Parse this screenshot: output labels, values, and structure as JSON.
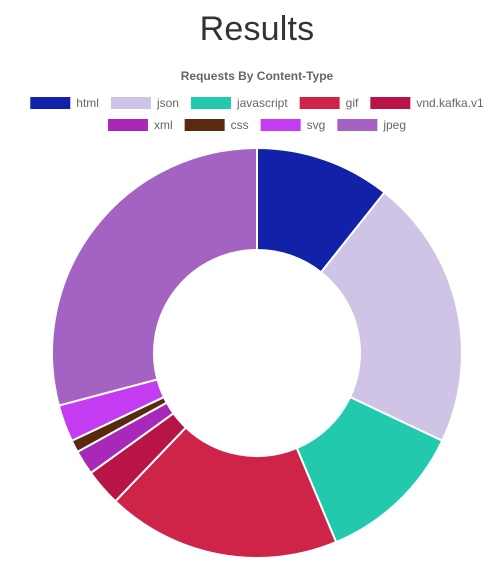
{
  "page": {
    "title": "Results"
  },
  "chart_data": {
    "type": "doughnut",
    "title": "Requests By Content-Type",
    "legend_position": "top",
    "categories": [
      "html",
      "json",
      "javascript",
      "gif",
      "vnd.kafka.v1",
      "xml",
      "css",
      "svg",
      "jpeg"
    ],
    "values": [
      11,
      22,
      12,
      19,
      3,
      2,
      1,
      3,
      30
    ],
    "colors": [
      "#1121a8",
      "#cfc4e6",
      "#22c9ad",
      "#ce2448",
      "#b91446",
      "#a828b8",
      "#5a2a0e",
      "#c43cf2",
      "#a463c2"
    ]
  }
}
